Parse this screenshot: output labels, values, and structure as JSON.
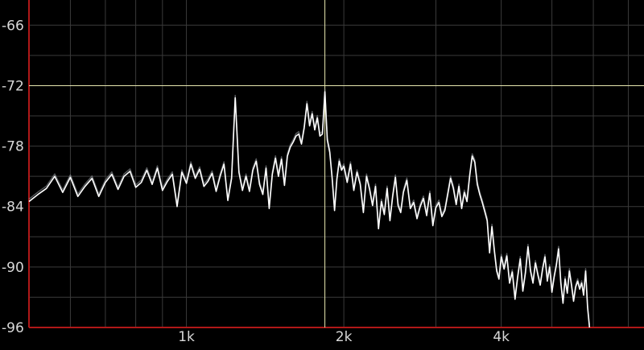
{
  "chart_data": {
    "type": "line",
    "title": "",
    "xlabel": "",
    "ylabel": "",
    "x_scale": "log",
    "xlim": [
      500,
      7500
    ],
    "ylim": [
      -96,
      -63.5
    ],
    "grid": true,
    "y_ticks": [
      {
        "value": -66,
        "label": "-66"
      },
      {
        "value": -72,
        "label": "-72"
      },
      {
        "value": -78,
        "label": "-78"
      },
      {
        "value": -84,
        "label": "-84"
      },
      {
        "value": -90,
        "label": "-90"
      },
      {
        "value": -96,
        "label": "-96"
      }
    ],
    "x_ticks": [
      {
        "value": 1000,
        "label": "1k"
      },
      {
        "value": 2000,
        "label": "2k"
      },
      {
        "value": 4000,
        "label": "4k"
      }
    ],
    "cursor": {
      "x": 1840,
      "y": -72
    },
    "colors": {
      "background": "#000000",
      "grid": "#3a3a3a",
      "axis": "#b01818",
      "trace": "#ffffff",
      "trace_shadow": "#9aa0a6",
      "cursor": "#e8e8b0"
    },
    "series": [
      {
        "points": [
          [
            500,
            -83.5
          ],
          [
            520,
            -82.8
          ],
          [
            540,
            -82.2
          ],
          [
            560,
            -81.0
          ],
          [
            580,
            -82.6
          ],
          [
            600,
            -81.1
          ],
          [
            620,
            -83.0
          ],
          [
            640,
            -82.0
          ],
          [
            660,
            -81.2
          ],
          [
            680,
            -83.0
          ],
          [
            700,
            -81.6
          ],
          [
            720,
            -80.8
          ],
          [
            740,
            -82.3
          ],
          [
            760,
            -81.0
          ],
          [
            780,
            -80.5
          ],
          [
            800,
            -82.1
          ],
          [
            820,
            -81.6
          ],
          [
            840,
            -80.4
          ],
          [
            860,
            -81.8
          ],
          [
            880,
            -80.2
          ],
          [
            900,
            -82.4
          ],
          [
            920,
            -81.5
          ],
          [
            940,
            -80.8
          ],
          [
            960,
            -84.0
          ],
          [
            980,
            -80.6
          ],
          [
            1000,
            -81.7
          ],
          [
            1020,
            -79.8
          ],
          [
            1040,
            -81.2
          ],
          [
            1060,
            -80.3
          ],
          [
            1080,
            -82.0
          ],
          [
            1100,
            -81.5
          ],
          [
            1120,
            -80.7
          ],
          [
            1140,
            -82.5
          ],
          [
            1160,
            -81.0
          ],
          [
            1180,
            -79.8
          ],
          [
            1200,
            -83.4
          ],
          [
            1220,
            -81.2
          ],
          [
            1240,
            -73.2
          ],
          [
            1260,
            -80.6
          ],
          [
            1280,
            -82.4
          ],
          [
            1300,
            -81.0
          ],
          [
            1320,
            -82.5
          ],
          [
            1340,
            -80.4
          ],
          [
            1360,
            -79.5
          ],
          [
            1380,
            -81.8
          ],
          [
            1400,
            -82.8
          ],
          [
            1420,
            -80.2
          ],
          [
            1440,
            -84.2
          ],
          [
            1460,
            -80.8
          ],
          [
            1480,
            -79.2
          ],
          [
            1500,
            -81.0
          ],
          [
            1520,
            -79.3
          ],
          [
            1540,
            -81.9
          ],
          [
            1560,
            -79.0
          ],
          [
            1580,
            -78.1
          ],
          [
            1600,
            -77.6
          ],
          [
            1620,
            -77.0
          ],
          [
            1640,
            -76.8
          ],
          [
            1660,
            -77.8
          ],
          [
            1680,
            -76.2
          ],
          [
            1700,
            -73.8
          ],
          [
            1720,
            -76.0
          ],
          [
            1740,
            -74.8
          ],
          [
            1760,
            -76.4
          ],
          [
            1780,
            -75.2
          ],
          [
            1800,
            -77.0
          ],
          [
            1820,
            -76.8
          ],
          [
            1840,
            -72.6
          ],
          [
            1860,
            -77.4
          ],
          [
            1880,
            -78.6
          ],
          [
            1900,
            -81.2
          ],
          [
            1920,
            -84.4
          ],
          [
            1940,
            -81.3
          ],
          [
            1960,
            -79.5
          ],
          [
            1980,
            -80.4
          ],
          [
            2000,
            -80.0
          ],
          [
            2030,
            -81.6
          ],
          [
            2060,
            -79.8
          ],
          [
            2090,
            -82.4
          ],
          [
            2120,
            -80.6
          ],
          [
            2150,
            -81.8
          ],
          [
            2180,
            -84.6
          ],
          [
            2210,
            -81.0
          ],
          [
            2240,
            -82.3
          ],
          [
            2270,
            -83.9
          ],
          [
            2300,
            -82.0
          ],
          [
            2330,
            -86.2
          ],
          [
            2360,
            -83.5
          ],
          [
            2390,
            -84.8
          ],
          [
            2420,
            -82.2
          ],
          [
            2450,
            -85.4
          ],
          [
            2480,
            -83.0
          ],
          [
            2510,
            -81.1
          ],
          [
            2540,
            -83.9
          ],
          [
            2570,
            -84.6
          ],
          [
            2600,
            -82.6
          ],
          [
            2640,
            -81.4
          ],
          [
            2680,
            -84.2
          ],
          [
            2720,
            -83.6
          ],
          [
            2760,
            -85.2
          ],
          [
            2800,
            -84.0
          ],
          [
            2840,
            -83.2
          ],
          [
            2880,
            -84.9
          ],
          [
            2920,
            -82.7
          ],
          [
            2960,
            -85.9
          ],
          [
            3000,
            -84.1
          ],
          [
            3040,
            -83.6
          ],
          [
            3080,
            -85.0
          ],
          [
            3120,
            -84.4
          ],
          [
            3160,
            -82.8
          ],
          [
            3200,
            -81.2
          ],
          [
            3240,
            -82.2
          ],
          [
            3280,
            -83.8
          ],
          [
            3320,
            -82.0
          ],
          [
            3360,
            -84.2
          ],
          [
            3400,
            -82.6
          ],
          [
            3440,
            -83.5
          ],
          [
            3480,
            -81.0
          ],
          [
            3520,
            -79.0
          ],
          [
            3560,
            -79.6
          ],
          [
            3600,
            -81.8
          ],
          [
            3640,
            -82.8
          ],
          [
            3680,
            -83.6
          ],
          [
            3720,
            -84.5
          ],
          [
            3760,
            -85.4
          ],
          [
            3800,
            -88.6
          ],
          [
            3840,
            -86.0
          ],
          [
            3880,
            -88.4
          ],
          [
            3920,
            -90.4
          ],
          [
            3960,
            -91.2
          ],
          [
            4000,
            -89.0
          ],
          [
            4050,
            -90.2
          ],
          [
            4100,
            -88.9
          ],
          [
            4150,
            -91.6
          ],
          [
            4200,
            -90.5
          ],
          [
            4250,
            -93.2
          ],
          [
            4300,
            -91.0
          ],
          [
            4350,
            -89.2
          ],
          [
            4400,
            -92.4
          ],
          [
            4450,
            -90.6
          ],
          [
            4500,
            -88.0
          ],
          [
            4550,
            -90.4
          ],
          [
            4600,
            -91.6
          ],
          [
            4650,
            -89.6
          ],
          [
            4700,
            -90.8
          ],
          [
            4750,
            -91.8
          ],
          [
            4800,
            -90.2
          ],
          [
            4850,
            -89.0
          ],
          [
            4900,
            -91.4
          ],
          [
            4950,
            -90.0
          ],
          [
            5000,
            -92.5
          ],
          [
            5050,
            -91.0
          ],
          [
            5100,
            -89.8
          ],
          [
            5150,
            -88.2
          ],
          [
            5200,
            -91.6
          ],
          [
            5250,
            -93.6
          ],
          [
            5300,
            -91.2
          ],
          [
            5350,
            -92.6
          ],
          [
            5400,
            -90.4
          ],
          [
            5450,
            -91.8
          ],
          [
            5500,
            -93.4
          ],
          [
            5550,
            -92.0
          ],
          [
            5600,
            -91.4
          ],
          [
            5650,
            -92.2
          ],
          [
            5700,
            -91.6
          ],
          [
            5750,
            -92.8
          ],
          [
            5800,
            -90.4
          ],
          [
            5850,
            -94.0
          ],
          [
            5900,
            -96.0
          ]
        ]
      }
    ]
  }
}
